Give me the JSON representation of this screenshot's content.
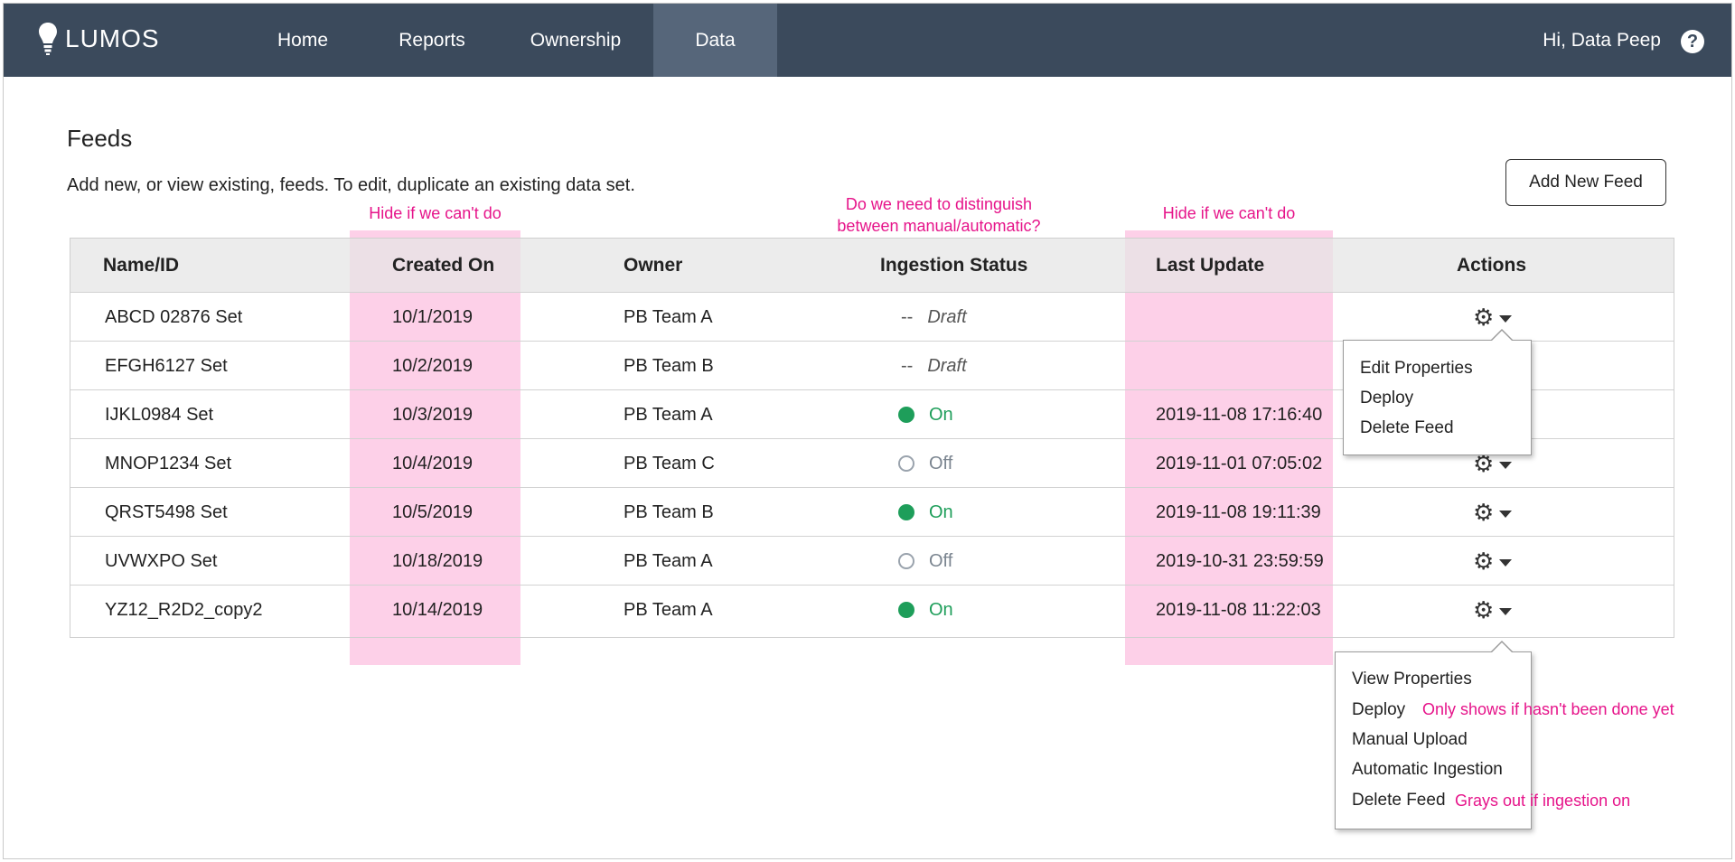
{
  "nav": {
    "logo_text": "LUMOS",
    "items": [
      {
        "label": "Home"
      },
      {
        "label": "Reports"
      },
      {
        "label": "Ownership"
      },
      {
        "label": "Data"
      }
    ],
    "active": "Data",
    "user_greeting": "Hi, Data Peep",
    "help_glyph": "?"
  },
  "page": {
    "title": "Feeds",
    "description": "Add new, or view existing, feeds. To edit, duplicate an existing data set.",
    "add_button": "Add New Feed"
  },
  "annotations": {
    "created_on_note": "Hide if we can't do",
    "ingestion_note_line1": "Do we need to distinguish",
    "ingestion_note_line2": "between manual/automatic?",
    "last_update_note": "Hide if we can't do",
    "deploy_note": "Only shows if hasn't been done yet",
    "delete_note": "Grays out if ingestion on",
    "highlight_color": "#fdd0e8",
    "note_color": "#e6148a"
  },
  "table": {
    "headers": {
      "name": "Name/ID",
      "created": "Created On",
      "owner": "Owner",
      "status": "Ingestion Status",
      "updated": "Last Update",
      "actions": "Actions"
    },
    "rows": [
      {
        "name": "ABCD 02876 Set",
        "created": "10/1/2019",
        "owner": "PB Team A",
        "status": "Draft",
        "status_type": "draft",
        "dash": "--",
        "updated": ""
      },
      {
        "name": "EFGH6127 Set",
        "created": "10/2/2019",
        "owner": "PB Team B",
        "status": "Draft",
        "status_type": "draft",
        "dash": "--",
        "updated": ""
      },
      {
        "name": "IJKL0984 Set",
        "created": "10/3/2019",
        "owner": "PB Team A",
        "status": "On",
        "status_type": "on",
        "updated": "2019-11-08 17:16:40"
      },
      {
        "name": "MNOP1234 Set",
        "created": "10/4/2019",
        "owner": "PB Team C",
        "status": "Off",
        "status_type": "off",
        "updated": "2019-11-01 07:05:02"
      },
      {
        "name": "QRST5498 Set",
        "created": "10/5/2019",
        "owner": "PB Team B",
        "status": "On",
        "status_type": "on",
        "updated": "2019-11-08 19:11:39"
      },
      {
        "name": "UVWXPO Set",
        "created": "10/18/2019",
        "owner": "PB Team A",
        "status": "Off",
        "status_type": "off",
        "updated": "2019-10-31 23:59:59"
      },
      {
        "name": "YZ12_R2D2_copy2",
        "created": "10/14/2019",
        "owner": "PB Team A",
        "status": "On",
        "status_type": "on",
        "updated": "2019-11-08 11:22:03"
      }
    ],
    "status_colors": {
      "on": "#1e9e5a",
      "off": "#9aa3ad"
    },
    "gear_glyph": "⚙"
  },
  "menus": {
    "draft_menu": [
      "Edit Properties",
      "Deploy",
      "Delete Feed"
    ],
    "active_menu": [
      "View Properties",
      "Deploy",
      "Manual Upload",
      "Automatic Ingestion",
      "Delete Feed"
    ]
  }
}
